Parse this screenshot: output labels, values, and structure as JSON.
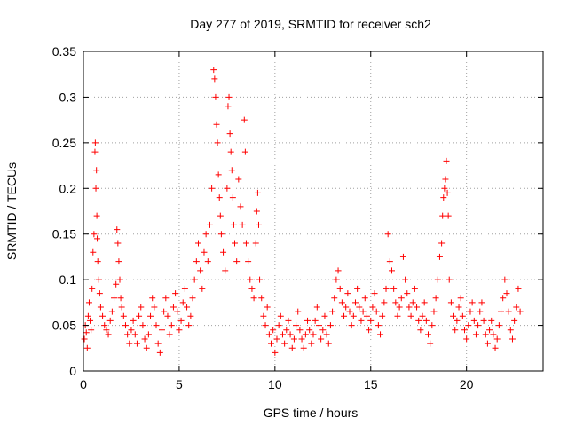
{
  "chart_data": {
    "type": "scatter",
    "title": "Day 277 of 2019, SRMTID for receiver sch2",
    "xlabel": "GPS time / hours",
    "ylabel": "SRMTID / TECUs",
    "xlim": [
      0,
      24
    ],
    "ylim": [
      0,
      0.35
    ],
    "xticks": [
      0,
      5,
      10,
      15,
      20
    ],
    "yticks": [
      0,
      0.05,
      0.1,
      0.15,
      0.2,
      0.25,
      0.3,
      0.35
    ],
    "ytick_labels": [
      "0",
      "0.05",
      "0.1",
      "0.15",
      "0.2",
      "0.25",
      "0.3",
      "0.35"
    ],
    "grid": true,
    "marker": "+",
    "color": "#ff0000",
    "series": [
      {
        "name": "SRMTID",
        "points": [
          [
            0.05,
            0.035
          ],
          [
            0.1,
            0.05
          ],
          [
            0.15,
            0.042
          ],
          [
            0.2,
            0.025
          ],
          [
            0.25,
            0.06
          ],
          [
            0.3,
            0.075
          ],
          [
            0.35,
            0.055
          ],
          [
            0.4,
            0.045
          ],
          [
            0.45,
            0.09
          ],
          [
            0.5,
            0.13
          ],
          [
            0.55,
            0.15
          ],
          [
            0.6,
            0.24
          ],
          [
            0.62,
            0.25
          ],
          [
            0.65,
            0.2
          ],
          [
            0.68,
            0.22
          ],
          [
            0.7,
            0.17
          ],
          [
            0.72,
            0.145
          ],
          [
            0.75,
            0.12
          ],
          [
            0.8,
            0.1
          ],
          [
            0.85,
            0.085
          ],
          [
            0.9,
            0.07
          ],
          [
            1.0,
            0.06
          ],
          [
            1.1,
            0.05
          ],
          [
            1.2,
            0.045
          ],
          [
            1.3,
            0.04
          ],
          [
            1.4,
            0.055
          ],
          [
            1.5,
            0.065
          ],
          [
            1.6,
            0.08
          ],
          [
            1.7,
            0.095
          ],
          [
            1.75,
            0.155
          ],
          [
            1.8,
            0.14
          ],
          [
            1.85,
            0.12
          ],
          [
            1.9,
            0.1
          ],
          [
            1.95,
            0.08
          ],
          [
            2.0,
            0.07
          ],
          [
            2.1,
            0.06
          ],
          [
            2.2,
            0.05
          ],
          [
            2.3,
            0.04
          ],
          [
            2.4,
            0.03
          ],
          [
            2.5,
            0.045
          ],
          [
            2.6,
            0.055
          ],
          [
            2.7,
            0.04
          ],
          [
            2.8,
            0.03
          ],
          [
            2.9,
            0.06
          ],
          [
            3.0,
            0.07
          ],
          [
            3.1,
            0.05
          ],
          [
            3.2,
            0.035
          ],
          [
            3.3,
            0.025
          ],
          [
            3.4,
            0.04
          ],
          [
            3.5,
            0.06
          ],
          [
            3.6,
            0.08
          ],
          [
            3.7,
            0.07
          ],
          [
            3.8,
            0.05
          ],
          [
            3.9,
            0.03
          ],
          [
            4.0,
            0.02
          ],
          [
            4.1,
            0.045
          ],
          [
            4.2,
            0.065
          ],
          [
            4.3,
            0.08
          ],
          [
            4.4,
            0.06
          ],
          [
            4.5,
            0.04
          ],
          [
            4.6,
            0.05
          ],
          [
            4.7,
            0.07
          ],
          [
            4.8,
            0.085
          ],
          [
            4.9,
            0.065
          ],
          [
            5.0,
            0.045
          ],
          [
            5.1,
            0.055
          ],
          [
            5.2,
            0.075
          ],
          [
            5.3,
            0.09
          ],
          [
            5.4,
            0.07
          ],
          [
            5.5,
            0.05
          ],
          [
            5.6,
            0.06
          ],
          [
            5.7,
            0.08
          ],
          [
            5.8,
            0.1
          ],
          [
            5.9,
            0.12
          ],
          [
            6.0,
            0.14
          ],
          [
            6.1,
            0.11
          ],
          [
            6.2,
            0.09
          ],
          [
            6.3,
            0.13
          ],
          [
            6.4,
            0.15
          ],
          [
            6.5,
            0.12
          ],
          [
            6.6,
            0.16
          ],
          [
            6.7,
            0.2
          ],
          [
            6.8,
            0.33
          ],
          [
            6.85,
            0.32
          ],
          [
            6.9,
            0.3
          ],
          [
            6.95,
            0.27
          ],
          [
            7.0,
            0.25
          ],
          [
            7.05,
            0.215
          ],
          [
            7.1,
            0.19
          ],
          [
            7.15,
            0.17
          ],
          [
            7.2,
            0.15
          ],
          [
            7.3,
            0.13
          ],
          [
            7.4,
            0.11
          ],
          [
            7.5,
            0.2
          ],
          [
            7.55,
            0.29
          ],
          [
            7.6,
            0.3
          ],
          [
            7.65,
            0.26
          ],
          [
            7.7,
            0.24
          ],
          [
            7.75,
            0.22
          ],
          [
            7.8,
            0.19
          ],
          [
            7.85,
            0.16
          ],
          [
            7.9,
            0.14
          ],
          [
            8.0,
            0.12
          ],
          [
            8.1,
            0.21
          ],
          [
            8.2,
            0.18
          ],
          [
            8.3,
            0.16
          ],
          [
            8.4,
            0.275
          ],
          [
            8.45,
            0.24
          ],
          [
            8.5,
            0.14
          ],
          [
            8.6,
            0.12
          ],
          [
            8.7,
            0.1
          ],
          [
            8.8,
            0.09
          ],
          [
            8.9,
            0.08
          ],
          [
            9.0,
            0.14
          ],
          [
            9.05,
            0.175
          ],
          [
            9.1,
            0.195
          ],
          [
            9.15,
            0.16
          ],
          [
            9.2,
            0.1
          ],
          [
            9.3,
            0.08
          ],
          [
            9.4,
            0.06
          ],
          [
            9.5,
            0.05
          ],
          [
            9.6,
            0.07
          ],
          [
            9.7,
            0.04
          ],
          [
            9.8,
            0.03
          ],
          [
            9.9,
            0.045
          ],
          [
            10.0,
            0.02
          ],
          [
            10.1,
            0.035
          ],
          [
            10.2,
            0.05
          ],
          [
            10.3,
            0.06
          ],
          [
            10.4,
            0.04
          ],
          [
            10.5,
            0.03
          ],
          [
            10.6,
            0.045
          ],
          [
            10.7,
            0.055
          ],
          [
            10.8,
            0.04
          ],
          [
            10.9,
            0.025
          ],
          [
            11.0,
            0.035
          ],
          [
            11.1,
            0.05
          ],
          [
            11.2,
            0.065
          ],
          [
            11.3,
            0.045
          ],
          [
            11.4,
            0.035
          ],
          [
            11.5,
            0.025
          ],
          [
            11.6,
            0.04
          ],
          [
            11.7,
            0.055
          ],
          [
            11.8,
            0.045
          ],
          [
            11.9,
            0.03
          ],
          [
            12.0,
            0.04
          ],
          [
            12.1,
            0.055
          ],
          [
            12.2,
            0.07
          ],
          [
            12.3,
            0.05
          ],
          [
            12.4,
            0.035
          ],
          [
            12.5,
            0.045
          ],
          [
            12.6,
            0.06
          ],
          [
            12.7,
            0.04
          ],
          [
            12.8,
            0.03
          ],
          [
            12.9,
            0.05
          ],
          [
            13.0,
            0.065
          ],
          [
            13.1,
            0.08
          ],
          [
            13.2,
            0.1
          ],
          [
            13.3,
            0.11
          ],
          [
            13.4,
            0.09
          ],
          [
            13.5,
            0.075
          ],
          [
            13.6,
            0.06
          ],
          [
            13.7,
            0.07
          ],
          [
            13.8,
            0.085
          ],
          [
            13.9,
            0.065
          ],
          [
            14.0,
            0.05
          ],
          [
            14.1,
            0.06
          ],
          [
            14.2,
            0.075
          ],
          [
            14.3,
            0.09
          ],
          [
            14.4,
            0.07
          ],
          [
            14.5,
            0.055
          ],
          [
            14.6,
            0.065
          ],
          [
            14.7,
            0.08
          ],
          [
            14.8,
            0.06
          ],
          [
            14.9,
            0.045
          ],
          [
            15.0,
            0.055
          ],
          [
            15.1,
            0.07
          ],
          [
            15.2,
            0.085
          ],
          [
            15.3,
            0.065
          ],
          [
            15.4,
            0.05
          ],
          [
            15.5,
            0.04
          ],
          [
            15.6,
            0.06
          ],
          [
            15.7,
            0.075
          ],
          [
            15.8,
            0.09
          ],
          [
            15.9,
            0.15
          ],
          [
            16.0,
            0.12
          ],
          [
            16.1,
            0.11
          ],
          [
            16.2,
            0.09
          ],
          [
            16.3,
            0.075
          ],
          [
            16.4,
            0.06
          ],
          [
            16.5,
            0.07
          ],
          [
            16.6,
            0.08
          ],
          [
            16.7,
            0.125
          ],
          [
            16.8,
            0.1
          ],
          [
            16.9,
            0.085
          ],
          [
            17.0,
            0.07
          ],
          [
            17.1,
            0.06
          ],
          [
            17.2,
            0.075
          ],
          [
            17.3,
            0.09
          ],
          [
            17.4,
            0.07
          ],
          [
            17.5,
            0.055
          ],
          [
            17.6,
            0.045
          ],
          [
            17.7,
            0.06
          ],
          [
            17.8,
            0.075
          ],
          [
            17.9,
            0.055
          ],
          [
            18.0,
            0.04
          ],
          [
            18.1,
            0.03
          ],
          [
            18.2,
            0.05
          ],
          [
            18.3,
            0.065
          ],
          [
            18.4,
            0.08
          ],
          [
            18.5,
            0.1
          ],
          [
            18.6,
            0.125
          ],
          [
            18.7,
            0.14
          ],
          [
            18.75,
            0.17
          ],
          [
            18.8,
            0.19
          ],
          [
            18.85,
            0.2
          ],
          [
            18.9,
            0.21
          ],
          [
            18.95,
            0.23
          ],
          [
            19.0,
            0.195
          ],
          [
            19.05,
            0.17
          ],
          [
            19.1,
            0.1
          ],
          [
            19.2,
            0.075
          ],
          [
            19.3,
            0.06
          ],
          [
            19.4,
            0.045
          ],
          [
            19.5,
            0.055
          ],
          [
            19.6,
            0.07
          ],
          [
            19.7,
            0.08
          ],
          [
            19.8,
            0.06
          ],
          [
            19.9,
            0.045
          ],
          [
            20.0,
            0.035
          ],
          [
            20.1,
            0.05
          ],
          [
            20.2,
            0.065
          ],
          [
            20.3,
            0.075
          ],
          [
            20.4,
            0.055
          ],
          [
            20.5,
            0.04
          ],
          [
            20.6,
            0.05
          ],
          [
            20.7,
            0.065
          ],
          [
            20.8,
            0.075
          ],
          [
            20.9,
            0.055
          ],
          [
            21.0,
            0.04
          ],
          [
            21.1,
            0.03
          ],
          [
            21.2,
            0.045
          ],
          [
            21.3,
            0.055
          ],
          [
            21.4,
            0.04
          ],
          [
            21.5,
            0.025
          ],
          [
            21.6,
            0.035
          ],
          [
            21.7,
            0.05
          ],
          [
            21.8,
            0.065
          ],
          [
            21.9,
            0.08
          ],
          [
            22.0,
            0.1
          ],
          [
            22.1,
            0.085
          ],
          [
            22.2,
            0.065
          ],
          [
            22.3,
            0.045
          ],
          [
            22.4,
            0.035
          ],
          [
            22.5,
            0.055
          ],
          [
            22.6,
            0.07
          ],
          [
            22.7,
            0.09
          ],
          [
            22.8,
            0.065
          ]
        ]
      }
    ]
  }
}
